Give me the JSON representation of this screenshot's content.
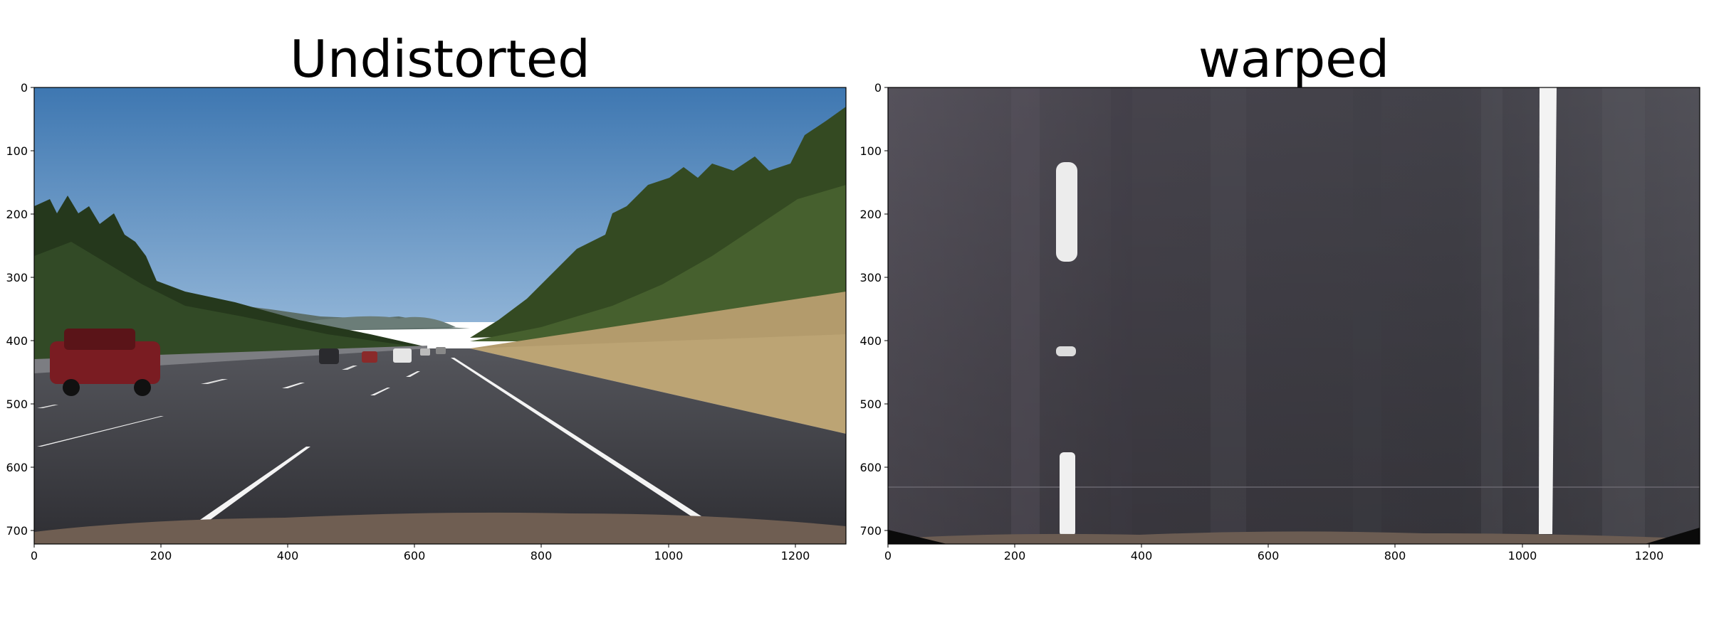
{
  "panels": [
    {
      "title": "Undistorted",
      "image_description": "dashcam view of a multi-lane highway with sky, trees, cars and white lane markings",
      "x_ticks": [
        "0",
        "200",
        "400",
        "600",
        "800",
        "1000",
        "1200"
      ],
      "y_ticks": [
        "0",
        "100",
        "200",
        "300",
        "400",
        "500",
        "600",
        "700"
      ]
    },
    {
      "title": "warped",
      "image_description": "bird's-eye warped view of the road with two white lane lines",
      "x_ticks": [
        "0",
        "200",
        "400",
        "600",
        "800",
        "1000",
        "1200"
      ],
      "y_ticks": [
        "0",
        "100",
        "200",
        "300",
        "400",
        "500",
        "600",
        "700"
      ]
    }
  ],
  "image_size": {
    "width": 1280,
    "height": 720
  },
  "colors": {
    "sky": "#4f86bd",
    "road": "#3b3b40",
    "grass": "#b39b6c",
    "trees": "#2f4a24",
    "lane_line": "#f4f4f4",
    "warped_road": "#4a4750"
  }
}
